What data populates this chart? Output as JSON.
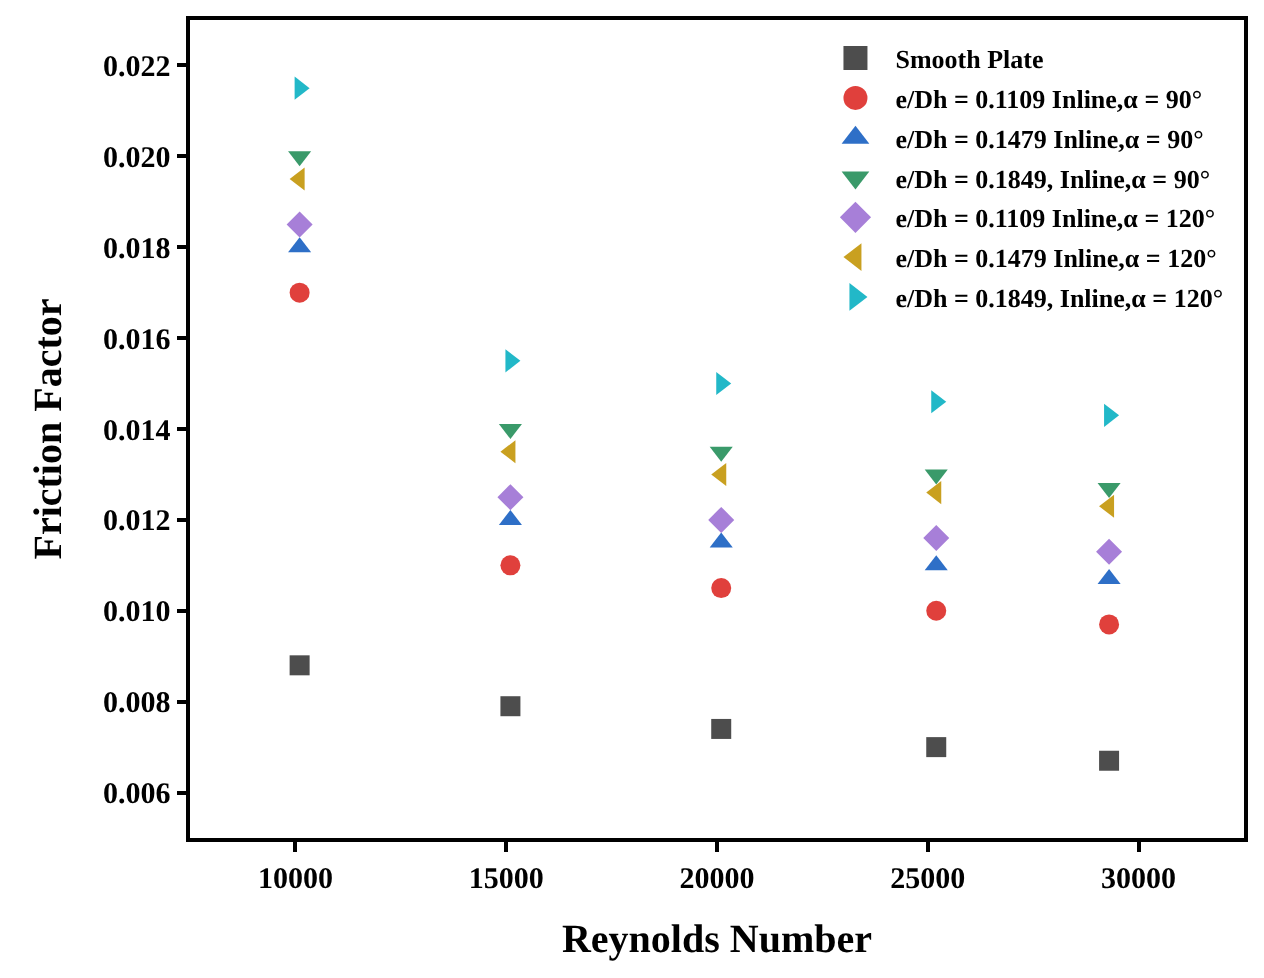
{
  "chart_data": {
    "type": "scatter",
    "xlabel": "Reynolds Number",
    "ylabel": "Friction Factor",
    "x": [
      10100,
      15100,
      20100,
      25200,
      29300
    ],
    "xlim": [
      7500,
      32500
    ],
    "xticks": [
      10000,
      15000,
      20000,
      25000,
      30000
    ],
    "ylim": [
      0.005,
      0.023
    ],
    "yticks": [
      0.006,
      0.008,
      {
        "value": 0.01,
        "label": "0.010"
      },
      0.012,
      0.014,
      0.016,
      0.018,
      {
        "value": 0.02,
        "label": "0.020"
      },
      0.022
    ],
    "legend": "top right",
    "series": [
      {
        "name": "Smooth Plate",
        "color": "#4d4d4d",
        "marker": "square",
        "values": [
          0.0088,
          0.0079,
          0.0074,
          0.007,
          0.0067
        ]
      },
      {
        "name": "e/Dh = 0.1109 Inline,α = 90°",
        "color": "#e0403c",
        "marker": "circle",
        "values": [
          0.017,
          0.011,
          0.0105,
          0.01,
          0.0097
        ]
      },
      {
        "name": "e/Dh = 0.1479 Inline,α = 90°",
        "color": "#2e6fc7",
        "marker": "triangle-up",
        "values": [
          0.018,
          0.012,
          0.0115,
          0.011,
          0.0107
        ]
      },
      {
        "name": "e/Dh = 0.1849, Inline,α = 90°",
        "color": "#3a9a6a",
        "marker": "triangle-down",
        "values": [
          0.02,
          0.014,
          0.0135,
          0.013,
          0.0127
        ]
      },
      {
        "name": "e/Dh = 0.1109 Inline,α = 120°",
        "color": "#a77fd8",
        "marker": "diamond",
        "values": [
          0.0185,
          0.0125,
          0.012,
          0.0116,
          0.0113
        ]
      },
      {
        "name": "e/Dh = 0.1479 Inline,α = 120°",
        "color": "#c9a020",
        "marker": "triangle-left",
        "values": [
          0.0195,
          0.0135,
          0.013,
          0.0126,
          0.0123
        ]
      },
      {
        "name": "e/Dh = 0.1849, Inline,α = 120°",
        "color": "#22b8c8",
        "marker": "triangle-right",
        "values": [
          0.0215,
          0.0155,
          0.015,
          0.0146,
          0.0143
        ]
      }
    ]
  }
}
